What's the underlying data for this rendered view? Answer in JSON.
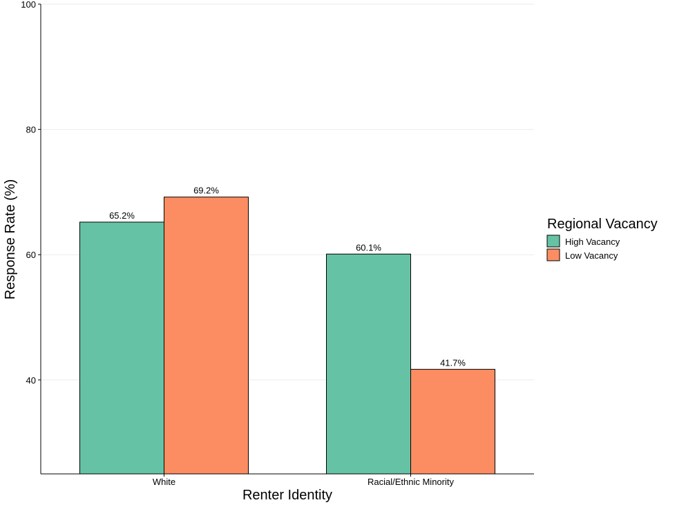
{
  "chart_data": {
    "type": "bar",
    "categories": [
      "White",
      "Racial/Ethnic Minority"
    ],
    "series": [
      {
        "name": "High Vacancy",
        "values": [
          65.2,
          60.1
        ],
        "labels": [
          "65.2%",
          "60.1%"
        ],
        "color": "#66c2a5"
      },
      {
        "name": "Low Vacancy",
        "values": [
          69.2,
          41.7
        ],
        "labels": [
          "69.2%",
          "41.7%"
        ],
        "color": "#fc8d62"
      }
    ],
    "xlabel": "Renter Identity",
    "ylabel": "Response Rate (%)",
    "ylim": [
      25,
      100
    ],
    "yticks": [
      40,
      60,
      80,
      100
    ],
    "grid": true,
    "legend": {
      "title": "Regional Vacancy",
      "position": "right"
    }
  }
}
